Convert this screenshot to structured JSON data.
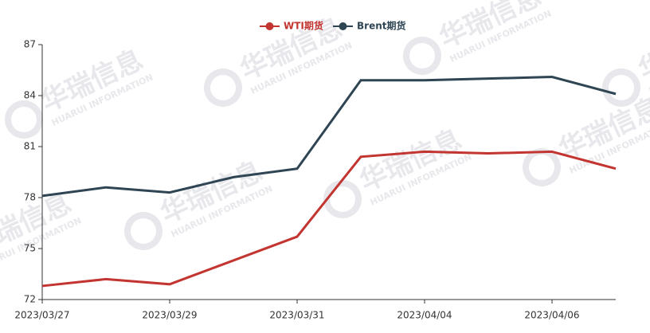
{
  "chart_data": {
    "type": "line",
    "categories": [
      "2023/03/27",
      null,
      "2023/03/29",
      null,
      "2023/03/31",
      null,
      "2023/04/04",
      null,
      "2023/04/06",
      null
    ],
    "series": [
      {
        "name": "WTI期货",
        "color": "#c23531",
        "values": [
          72.8,
          73.2,
          72.9,
          74.3,
          75.7,
          80.4,
          80.7,
          80.6,
          80.7,
          79.7
        ]
      },
      {
        "name": "Brent期货",
        "color": "#2f4554",
        "values": [
          78.1,
          78.6,
          78.3,
          79.2,
          79.7,
          84.9,
          84.9,
          85.0,
          85.1,
          84.1
        ]
      }
    ],
    "ylim": [
      72,
      87
    ],
    "yticks": [
      72,
      75,
      78,
      81,
      84,
      87
    ],
    "grid": false,
    "legend": "top",
    "watermark": {
      "title": "华瑞信息",
      "subtitle": "HUARUI INFORMATION"
    }
  }
}
